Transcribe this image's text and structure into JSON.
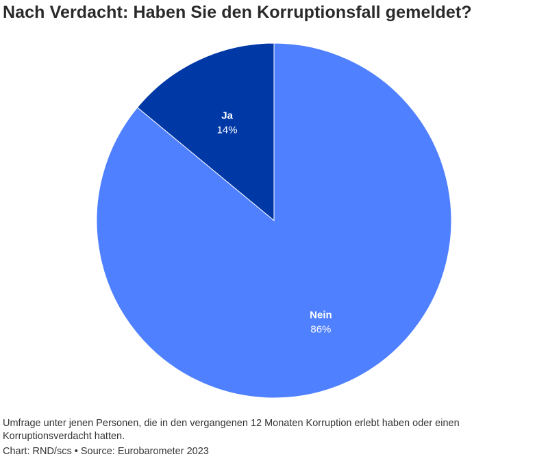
{
  "chart_data": {
    "type": "pie",
    "title": "Nach Verdacht: Haben Sie den Korruptionsfall gemeldet?",
    "slices": [
      {
        "label": "Ja",
        "value": 14,
        "value_label": "14%",
        "color": "#0039a6"
      },
      {
        "label": "Nein",
        "value": 86,
        "value_label": "86%",
        "color": "#4f80ff"
      }
    ],
    "start": "top",
    "direction": "counterclockwise"
  },
  "footer": {
    "note": "Umfrage unter jenen Personen, die in den vergangenen 12 Monaten Korruption erlebt haben oder einen Korruptionsverdacht hatten.",
    "credit": "Chart: RND/scs • Source: Eurobarometer 2023"
  }
}
